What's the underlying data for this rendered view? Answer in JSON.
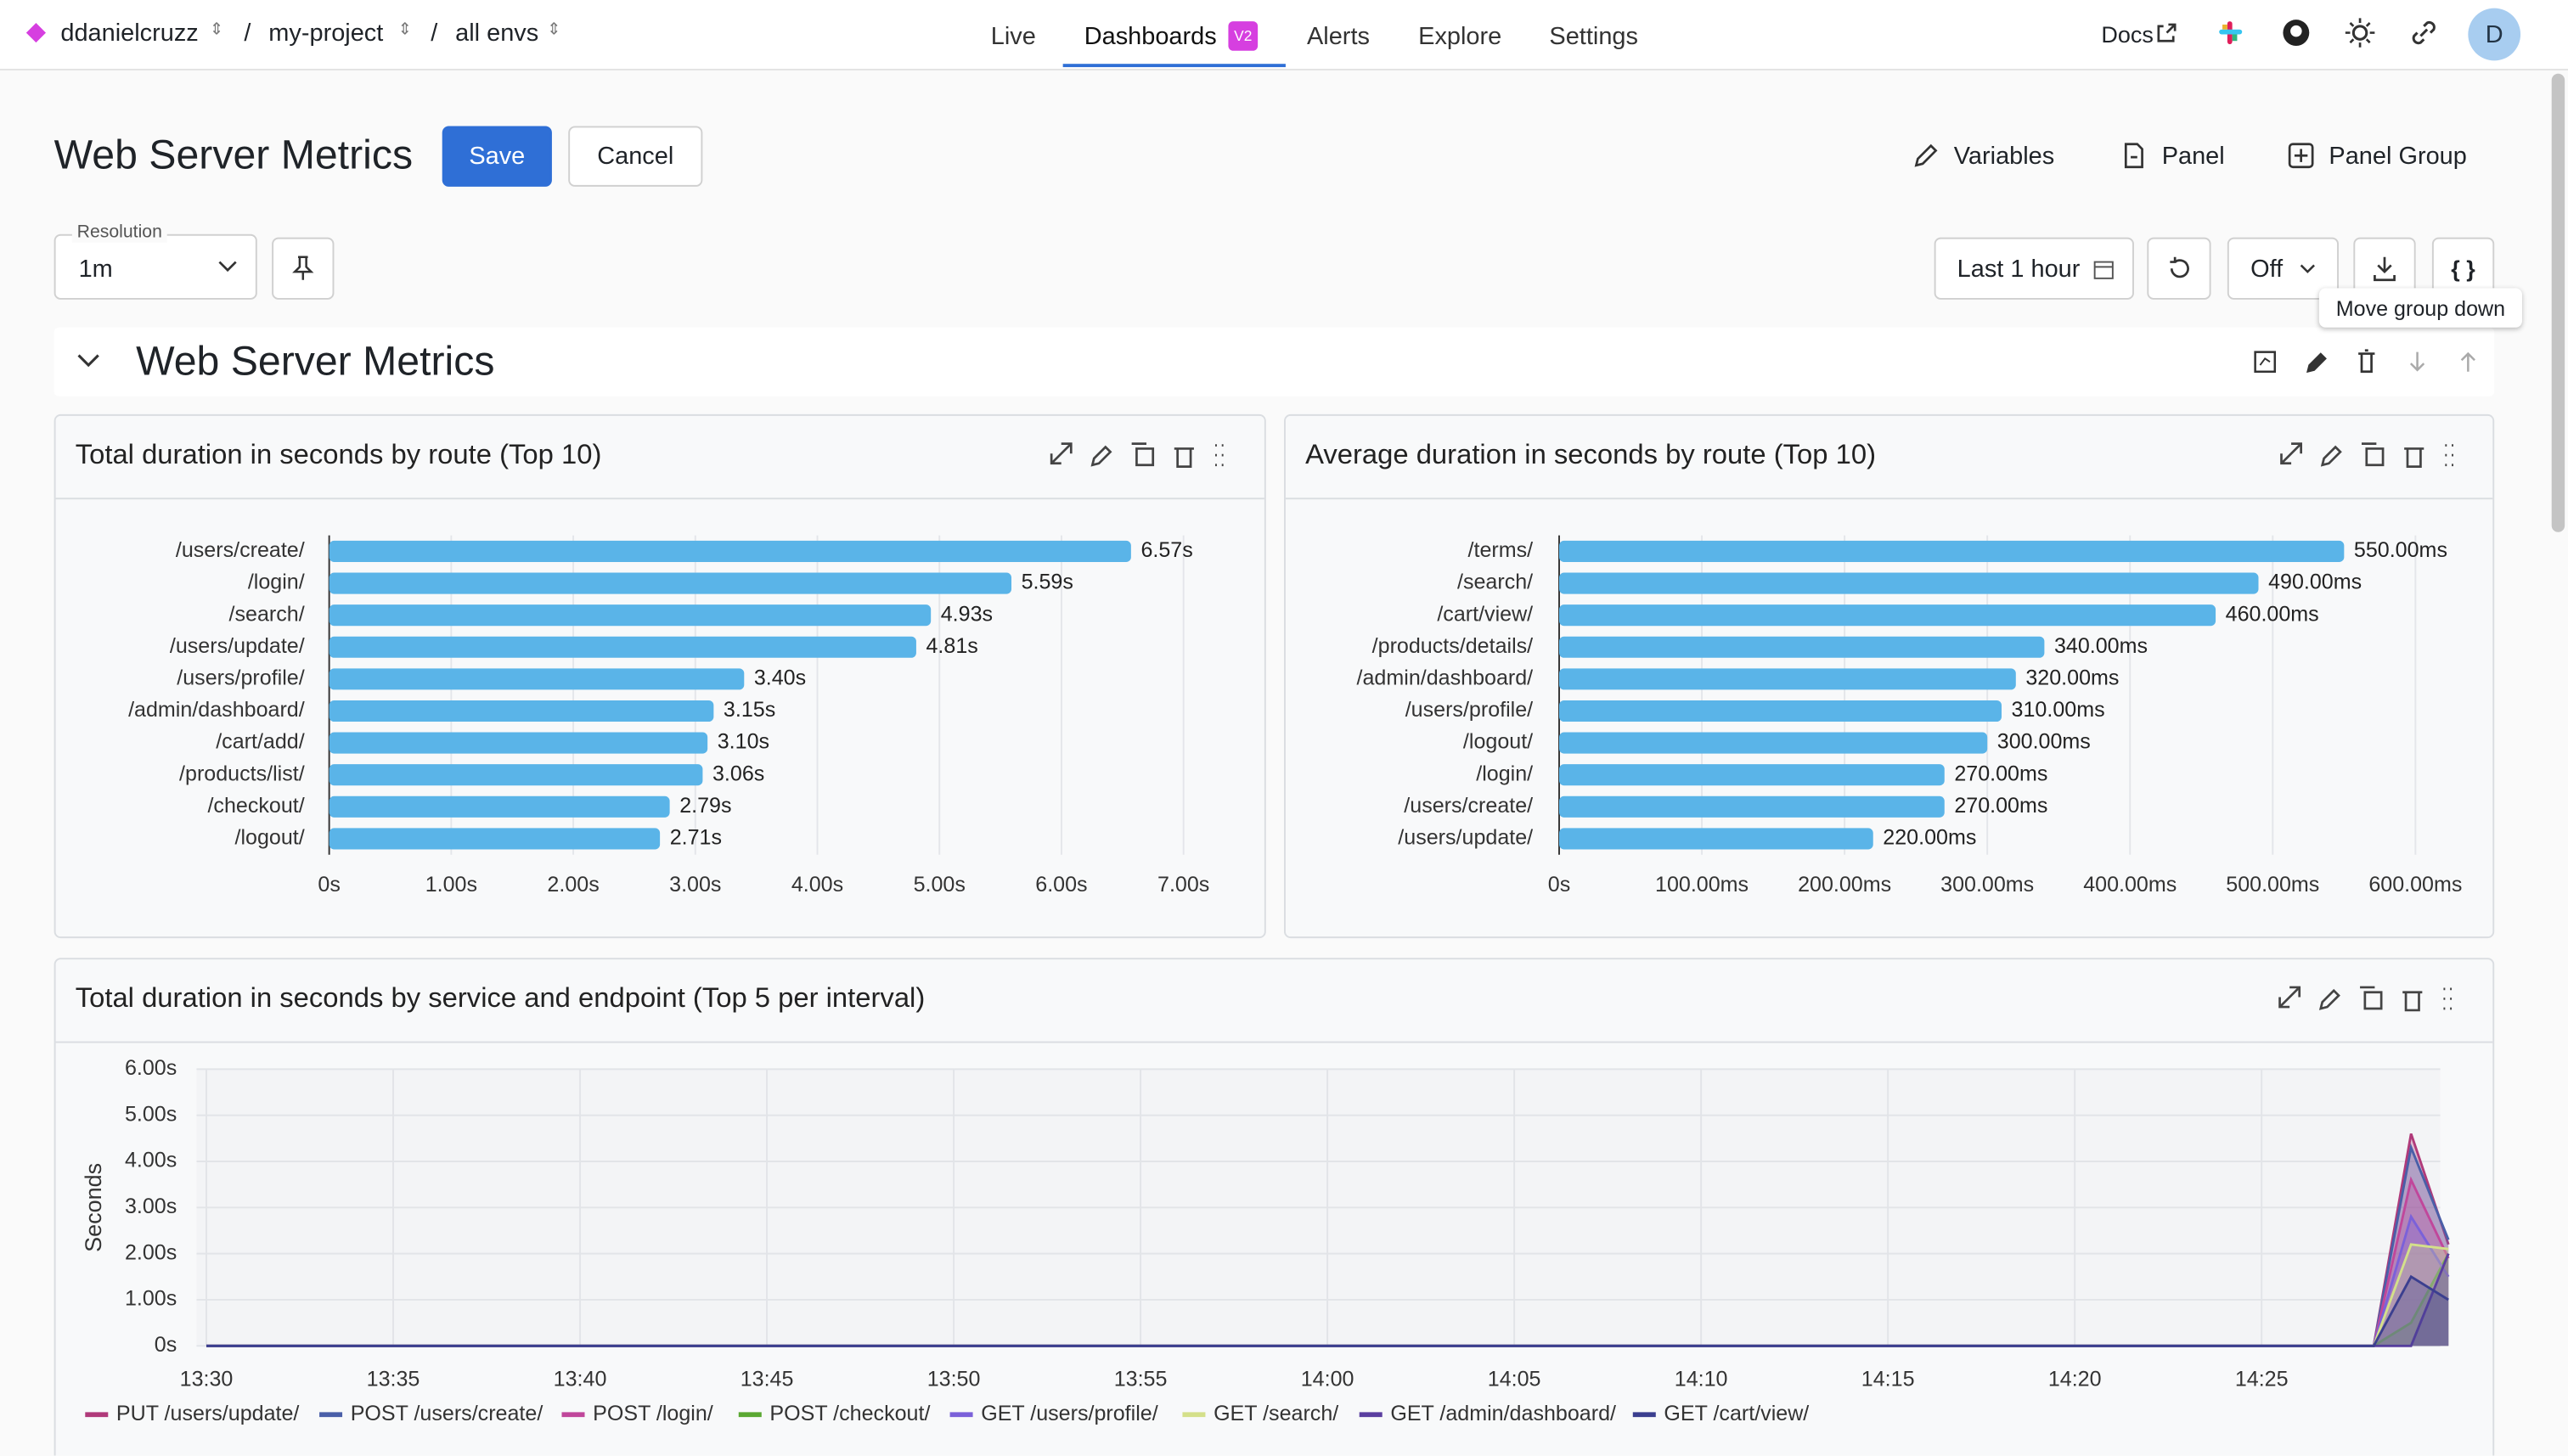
{
  "nav": {
    "org": "ddanielcruzz",
    "project": "my-project",
    "env": "all envs",
    "tabs": [
      "Live",
      "Dashboards",
      "Alerts",
      "Explore",
      "Settings"
    ],
    "badge": "V2",
    "docs": "Docs",
    "avatar": "D"
  },
  "header": {
    "title": "Web Server Metrics",
    "save": "Save",
    "cancel": "Cancel",
    "actions": [
      "Variables",
      "Panel",
      "Panel Group"
    ]
  },
  "toolbar": {
    "resolution_label": "Resolution",
    "resolution": "1m",
    "range": "Last 1 hour",
    "refresh": "Off",
    "tooltip": "Move group down"
  },
  "group": {
    "title": "Web Server Metrics"
  },
  "chart_data": [
    {
      "type": "bar",
      "orientation": "horizontal",
      "title": "Total duration in seconds by route (Top 10)",
      "color": "#5ab4e8",
      "categories": [
        "/users/create/",
        "/login/",
        "/search/",
        "/users/update/",
        "/users/profile/",
        "/admin/dashboard/",
        "/cart/add/",
        "/products/list/",
        "/checkout/",
        "/logout/"
      ],
      "values": [
        6.57,
        5.59,
        4.93,
        4.81,
        3.4,
        3.15,
        3.1,
        3.06,
        2.79,
        2.71
      ],
      "value_labels": [
        "6.57s",
        "5.59s",
        "4.93s",
        "4.81s",
        "3.40s",
        "3.15s",
        "3.10s",
        "3.06s",
        "2.79s",
        "2.71s"
      ],
      "xlim": [
        0,
        7.3
      ],
      "xticks": [
        {
          "value": 0,
          "label": "0s"
        },
        {
          "value": 1,
          "label": "1.00s"
        },
        {
          "value": 2,
          "label": "2.00s"
        },
        {
          "value": 3,
          "label": "3.00s"
        },
        {
          "value": 4,
          "label": "4.00s"
        },
        {
          "value": 5,
          "label": "5.00s"
        },
        {
          "value": 6,
          "label": "6.00s"
        },
        {
          "value": 7,
          "label": "7.00s"
        }
      ],
      "grid": true
    },
    {
      "type": "bar",
      "orientation": "horizontal",
      "title": "Average duration in seconds by route (Top 10)",
      "color": "#5ab4e8",
      "categories": [
        "/terms/",
        "/search/",
        "/cart/view/",
        "/products/details/",
        "/admin/dashboard/",
        "/users/profile/",
        "/logout/",
        "/login/",
        "/users/create/",
        "/users/update/"
      ],
      "values": [
        550,
        490,
        460,
        340,
        320,
        310,
        300,
        270,
        270,
        220
      ],
      "value_labels": [
        "550.00ms",
        "490.00ms",
        "460.00ms",
        "340.00ms",
        "320.00ms",
        "310.00ms",
        "300.00ms",
        "270.00ms",
        "270.00ms",
        "220.00ms"
      ],
      "xlim": [
        0,
        630
      ],
      "xticks": [
        {
          "value": 0,
          "label": "0s"
        },
        {
          "value": 100,
          "label": "100.00ms"
        },
        {
          "value": 200,
          "label": "200.00ms"
        },
        {
          "value": 300,
          "label": "300.00ms"
        },
        {
          "value": 400,
          "label": "400.00ms"
        },
        {
          "value": 500,
          "label": "500.00ms"
        },
        {
          "value": 600,
          "label": "600.00ms"
        }
      ],
      "grid": true
    },
    {
      "type": "area",
      "title": "Total duration in seconds by service and endpoint (Top 5 per interval)",
      "y_label": "Seconds",
      "x": [
        "13:30",
        "14:28",
        "14:29",
        "14:30"
      ],
      "xlim": [
        "13:30",
        "14:30"
      ],
      "xticks": [
        "13:30",
        "13:35",
        "13:40",
        "13:45",
        "13:50",
        "13:55",
        "14:00",
        "14:05",
        "14:10",
        "14:15",
        "14:20",
        "14:25"
      ],
      "ylim": [
        0,
        6
      ],
      "yticks": [
        {
          "value": 0,
          "label": "0s"
        },
        {
          "value": 1,
          "label": "1.00s"
        },
        {
          "value": 2,
          "label": "2.00s"
        },
        {
          "value": 3,
          "label": "3.00s"
        },
        {
          "value": 4,
          "label": "4.00s"
        },
        {
          "value": 5,
          "label": "5.00s"
        },
        {
          "value": 6,
          "label": "6.00s"
        }
      ],
      "grid": true,
      "series": [
        {
          "name": "PUT /users/update/",
          "color": "#b03a7a",
          "values": [
            0,
            0,
            4.6,
            2.2
          ]
        },
        {
          "name": "POST /users/create/",
          "color": "#4a5fa8",
          "values": [
            0,
            0,
            4.3,
            2.3
          ]
        },
        {
          "name": "POST /login/",
          "color": "#c0479b",
          "values": [
            0,
            0,
            3.6,
            1.9
          ]
        },
        {
          "name": "POST /checkout/",
          "color": "#5aa832",
          "values": [
            0,
            0,
            0.5,
            2.0
          ]
        },
        {
          "name": "GET /users/profile/",
          "color": "#7b61d9",
          "values": [
            0,
            0,
            2.8,
            1.5
          ]
        },
        {
          "name": "GET /search/",
          "color": "#d4e08a",
          "values": [
            0,
            0,
            2.2,
            2.1
          ]
        },
        {
          "name": "GET /admin/dashboard/",
          "color": "#5b3fa0",
          "values": [
            0,
            0,
            0,
            2.0
          ]
        },
        {
          "name": "GET /cart/view/",
          "color": "#3b3f8f",
          "values": [
            0,
            0,
            1.5,
            1.0
          ]
        }
      ]
    }
  ]
}
